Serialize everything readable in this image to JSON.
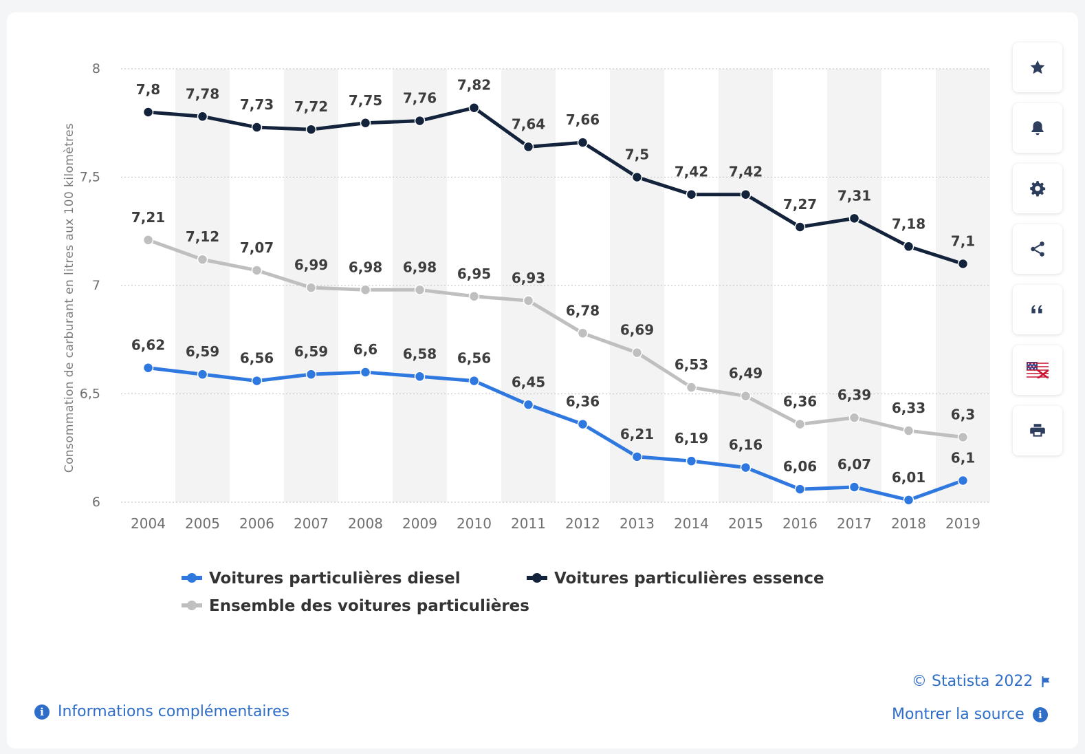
{
  "chart_data": {
    "type": "line",
    "title": "",
    "xlabel": "",
    "ylabel": "Consommation de carburant en litres aux 100 kilomètres",
    "ylim": [
      6,
      8
    ],
    "yticks": [
      6,
      6.5,
      7,
      7.5,
      8
    ],
    "ytick_labels": [
      "6",
      "6,5",
      "7",
      "7,5",
      "8"
    ],
    "categories": [
      "2004",
      "2005",
      "2006",
      "2007",
      "2008",
      "2009",
      "2010",
      "2011",
      "2012",
      "2013",
      "2014",
      "2015",
      "2016",
      "2017",
      "2018",
      "2019"
    ],
    "grid": "horizontal dotted",
    "legend_position": "bottom",
    "series": [
      {
        "name": "Voitures particulières diesel",
        "color": "#2f78e0",
        "values": [
          6.62,
          6.59,
          6.56,
          6.59,
          6.6,
          6.58,
          6.56,
          6.45,
          6.36,
          6.21,
          6.19,
          6.16,
          6.06,
          6.07,
          6.01,
          6.1
        ],
        "labels": [
          "6,62",
          "6,59",
          "6,56",
          "6,59",
          "6,6",
          "6,58",
          "6,56",
          "6,45",
          "6,36",
          "6,21",
          "6,19",
          "6,16",
          "6,06",
          "6,07",
          "6,01",
          "6,1"
        ]
      },
      {
        "name": "Voitures particulières essence",
        "color": "#13233c",
        "values": [
          7.8,
          7.78,
          7.73,
          7.72,
          7.75,
          7.76,
          7.82,
          7.64,
          7.66,
          7.5,
          7.42,
          7.42,
          7.27,
          7.31,
          7.18,
          7.1
        ],
        "labels": [
          "7,8",
          "7,78",
          "7,73",
          "7,72",
          "7,75",
          "7,76",
          "7,82",
          "7,64",
          "7,66",
          "7,5",
          "7,42",
          "7,42",
          "7,27",
          "7,31",
          "7,18",
          "7,1"
        ]
      },
      {
        "name": "Ensemble des voitures particulières",
        "color": "#bfbfbf",
        "values": [
          7.21,
          7.12,
          7.07,
          6.99,
          6.98,
          6.98,
          6.95,
          6.93,
          6.78,
          6.69,
          6.53,
          6.49,
          6.36,
          6.39,
          6.33,
          6.3
        ],
        "labels": [
          "7,21",
          "7,12",
          "7,07",
          "6,99",
          "6,98",
          "6,98",
          "6,95",
          "6,93",
          "6,78",
          "6,69",
          "6,53",
          "6,49",
          "6,36",
          "6,39",
          "6,33",
          "6,3"
        ]
      }
    ]
  },
  "toolbar": {
    "buttons": [
      {
        "icon": "star-icon"
      },
      {
        "icon": "bell-icon"
      },
      {
        "icon": "gear-icon"
      },
      {
        "icon": "share-icon"
      },
      {
        "icon": "quote-icon"
      },
      {
        "icon": "uk-flag-icon"
      },
      {
        "icon": "print-icon"
      }
    ]
  },
  "footer": {
    "copyright": "© Statista 2022",
    "more_info": "Informations complémentaires",
    "show_source": "Montrer la source"
  },
  "colors": {
    "link": "#2f6ec8",
    "band": "#f3f3f3"
  }
}
